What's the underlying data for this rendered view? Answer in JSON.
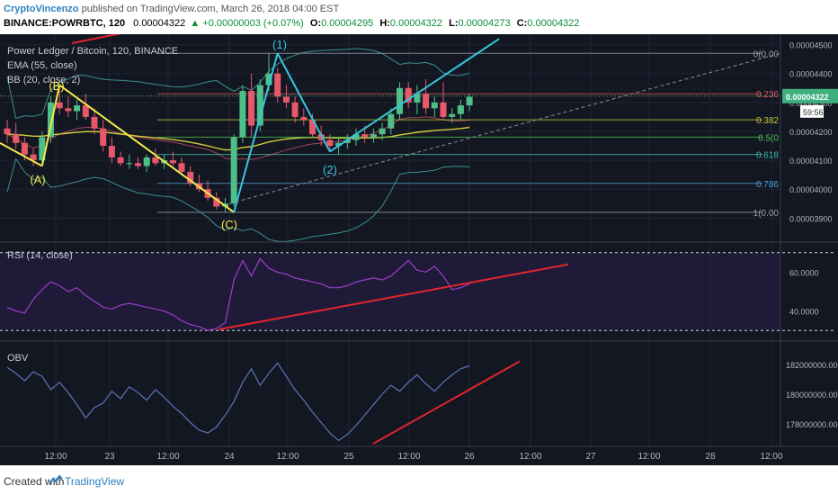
{
  "header": {
    "author": "CryptoVincenzo",
    "published": "published on TradingView.com, March 26, 2018 04:00 EST",
    "symbol": "BINANCE:POWRBTC, 120",
    "last": "0.00004322",
    "change": "+0.00000003 (+0.07%)",
    "o_label": "O:",
    "o": "0.00004295",
    "h_label": "H:",
    "h": "0.00004322",
    "l_label": "L:",
    "l": "0.00004273",
    "c_label": "C:",
    "c": "0.00004322"
  },
  "legend": {
    "title": "Power Ledger / Bitcoin, 120, BINANCE",
    "ema": "EMA (55, close)",
    "bb": "BB (20, close, 2)",
    "rsi": "RSI (14, close)",
    "obv": "OBV"
  },
  "footer": {
    "created_with": "Created with",
    "brand": "TradingView"
  },
  "annotations": {
    "wave_a": "(A)",
    "wave_b": "(B)",
    "wave_c": "(C)",
    "wave_1": "(1)",
    "wave_2": "(2)"
  },
  "chart_data": [
    {
      "type": "candlestick",
      "title": "Power Ledger / Bitcoin, 120, BINANCE",
      "ylim": [
        3.82e-05,
        4.53e-05
      ],
      "y_ticks": [
        "0.00004500",
        "0.00004400",
        "0.00004300",
        "0.00004200",
        "0.00004100",
        "0.00004000",
        "0.00003900"
      ],
      "y_tick_values": [
        4.5e-05,
        4.4e-05,
        4.3e-05,
        4.2e-05,
        4.1e-05,
        4e-05,
        3.9e-05
      ],
      "current_price": "0.00004322",
      "countdown": "59:56",
      "x_tick_labels": [
        "12:00",
        "23",
        "12:00",
        "24",
        "12:00",
        "25",
        "12:00",
        "26",
        "12:00",
        "27",
        "12:00",
        "28",
        "12:00"
      ],
      "fib_levels": [
        {
          "label": "0(0.00",
          "value": 4.47e-05,
          "color": "#9a9ea8"
        },
        {
          "label": "0.236",
          "value": 4.33e-05,
          "color": "#e05a5a"
        },
        {
          "label": "0.382",
          "value": 4.24e-05,
          "color": "#c8c838"
        },
        {
          "label": "0.5(0",
          "value": 4.18e-05,
          "color": "#4ec24e"
        },
        {
          "label": "0.618",
          "value": 4.12e-05,
          "color": "#3dbdaa"
        },
        {
          "label": "0.786",
          "value": 4.02e-05,
          "color": "#4fa3d9"
        },
        {
          "label": "1(0.00",
          "value": 3.92e-05,
          "color": "#9a9ea8"
        }
      ],
      "candles": [
        [
          4.21e-05,
          4.24e-05,
          4.16e-05,
          4.19e-05
        ],
        [
          4.19e-05,
          4.23e-05,
          4.14e-05,
          4.16e-05
        ],
        [
          4.16e-05,
          4.18e-05,
          4.1e-05,
          4.12e-05
        ],
        [
          4.12e-05,
          4.14e-05,
          4.08e-05,
          4.1e-05
        ],
        [
          4.1e-05,
          4.2e-05,
          4.08e-05,
          4.18e-05
        ],
        [
          4.18e-05,
          4.32e-05,
          4.16e-05,
          4.3e-05
        ],
        [
          4.3e-05,
          4.36e-05,
          4.26e-05,
          4.28e-05
        ],
        [
          4.28e-05,
          4.32e-05,
          4.25e-05,
          4.27e-05
        ],
        [
          4.27e-05,
          4.31e-05,
          4.24e-05,
          4.29e-05
        ],
        [
          4.29e-05,
          4.33e-05,
          4.24e-05,
          4.25e-05
        ],
        [
          4.25e-05,
          4.28e-05,
          4.19e-05,
          4.21e-05
        ],
        [
          4.21e-05,
          4.24e-05,
          4.13e-05,
          4.15e-05
        ],
        [
          4.15e-05,
          4.18e-05,
          4.09e-05,
          4.11e-05
        ],
        [
          4.11e-05,
          4.13e-05,
          4.08e-05,
          4.09e-05
        ],
        [
          4.09e-05,
          4.12e-05,
          4.07e-05,
          4.09e-05
        ],
        [
          4.09e-05,
          4.11e-05,
          4.07e-05,
          4.08e-05
        ],
        [
          4.08e-05,
          4.12e-05,
          4.06e-05,
          4.11e-05
        ],
        [
          4.11e-05,
          4.14e-05,
          4.08e-05,
          4.09e-05
        ],
        [
          4.09e-05,
          4.12e-05,
          4.07e-05,
          4.1e-05
        ],
        [
          4.1e-05,
          4.13e-05,
          4.08e-05,
          4.09e-05
        ],
        [
          4.09e-05,
          4.11e-05,
          4.05e-05,
          4.06e-05
        ],
        [
          4.06e-05,
          4.08e-05,
          4.01e-05,
          4.02e-05
        ],
        [
          4.02e-05,
          4.05e-05,
          3.99e-05,
          4e-05
        ],
        [
          4e-05,
          4.03e-05,
          3.96e-05,
          3.97e-05
        ],
        [
          3.97e-05,
          3.99e-05,
          3.93e-05,
          3.94e-05
        ],
        [
          3.94e-05,
          3.97e-05,
          3.92e-05,
          3.95e-05
        ],
        [
          3.95e-05,
          4.19e-05,
          3.94e-05,
          4.18e-05
        ],
        [
          4.18e-05,
          4.36e-05,
          4.16e-05,
          4.34e-05
        ],
        [
          4.34e-05,
          4.4e-05,
          4.18e-05,
          4.22e-05
        ],
        [
          4.22e-05,
          4.38e-05,
          4.2e-05,
          4.36e-05
        ],
        [
          4.36e-05,
          4.47e-05,
          4.34e-05,
          4.4e-05
        ],
        [
          4.4e-05,
          4.42e-05,
          4.3e-05,
          4.32e-05
        ],
        [
          4.32e-05,
          4.36e-05,
          4.28e-05,
          4.3e-05
        ],
        [
          4.3e-05,
          4.32e-05,
          4.23e-05,
          4.25e-05
        ],
        [
          4.25e-05,
          4.28e-05,
          4.22e-05,
          4.24e-05
        ],
        [
          4.24e-05,
          4.26e-05,
          4.18e-05,
          4.19e-05
        ],
        [
          4.19e-05,
          4.22e-05,
          4.15e-05,
          4.17e-05
        ],
        [
          4.17e-05,
          4.19e-05,
          4.13e-05,
          4.15e-05
        ],
        [
          4.15e-05,
          4.18e-05,
          4.12e-05,
          4.16e-05
        ],
        [
          4.16e-05,
          4.19e-05,
          4.14e-05,
          4.17e-05
        ],
        [
          4.17e-05,
          4.21e-05,
          4.15e-05,
          4.19e-05
        ],
        [
          4.19e-05,
          4.22e-05,
          4.16e-05,
          4.18e-05
        ],
        [
          4.18e-05,
          4.21e-05,
          4.16e-05,
          4.19e-05
        ],
        [
          4.19e-05,
          4.23e-05,
          4.17e-05,
          4.21e-05
        ],
        [
          4.21e-05,
          4.28e-05,
          4.19e-05,
          4.26e-05
        ],
        [
          4.26e-05,
          4.37e-05,
          4.24e-05,
          4.35e-05
        ],
        [
          4.35e-05,
          4.37e-05,
          4.28e-05,
          4.3e-05
        ],
        [
          4.3e-05,
          4.36e-05,
          4.26e-05,
          4.33e-05
        ],
        [
          4.33e-05,
          4.38e-05,
          4.26e-05,
          4.28e-05
        ],
        [
          4.28e-05,
          4.32e-05,
          4.25e-05,
          4.3e-05
        ],
        [
          4.3e-05,
          4.37e-05,
          4.24e-05,
          4.25e-05
        ],
        [
          4.25e-05,
          4.28e-05,
          4.23e-05,
          4.26e-05
        ],
        [
          4.26e-05,
          4.31e-05,
          4.24e-05,
          4.29e-05
        ],
        [
          4.29e-05,
          4.33e-05,
          4.27e-05,
          4.32e-05
        ]
      ]
    },
    {
      "type": "line",
      "title": "RSI (14, close)",
      "ylim": [
        25,
        75
      ],
      "y_ticks": [
        "60.0000",
        "40.0000"
      ],
      "y_tick_values": [
        60,
        40
      ],
      "bands": [
        70,
        30
      ],
      "values": [
        42,
        40,
        39,
        46,
        51,
        55,
        53,
        50,
        52,
        48,
        45,
        42,
        41,
        43,
        44,
        43,
        42,
        41,
        40,
        38,
        35,
        33,
        32,
        30,
        31,
        34,
        56,
        66,
        58,
        67,
        62,
        60,
        59,
        57,
        56,
        55,
        54,
        52,
        52,
        53,
        55,
        56,
        57,
        56,
        58,
        62,
        66,
        61,
        60,
        63,
        58,
        51,
        52,
        54
      ]
    },
    {
      "type": "line",
      "title": "OBV",
      "ylim": [
        176500000,
        183500000
      ],
      "y_ticks": [
        "182000000.0000",
        "180000000.0000",
        "178000000.0000"
      ],
      "y_tick_values": [
        182000000,
        180000000,
        178000000
      ],
      "values": [
        181800000,
        181400000,
        180900000,
        181500000,
        181200000,
        180300000,
        180800000,
        180100000,
        179300000,
        178400000,
        179100000,
        179400000,
        180200000,
        179700000,
        180500000,
        180100000,
        179600000,
        180300000,
        179800000,
        179200000,
        178700000,
        178100000,
        177600000,
        177400000,
        177800000,
        178600000,
        179500000,
        180800000,
        181700000,
        180600000,
        181400000,
        182100000,
        181200000,
        180300000,
        179600000,
        178800000,
        178100000,
        177400000,
        176900000,
        177300000,
        177900000,
        178600000,
        179300000,
        180000000,
        180600000,
        180200000,
        180800000,
        181300000,
        180700000,
        180200000,
        180800000,
        181300000,
        181700000,
        181900000
      ]
    }
  ],
  "colors": {
    "background": "#131722",
    "up": "#4fbf8a",
    "down": "#e8586b",
    "ema": "#d6cf3a",
    "bollinger": "#3d8f8c",
    "rsi_line": "#9b3fc9",
    "obv_line": "#5b74b8",
    "trend_red": "#e0252c",
    "trend_cyan": "#36c6de",
    "trend_yellow": "#f2e84a",
    "fib_gray": "#7d818a"
  }
}
